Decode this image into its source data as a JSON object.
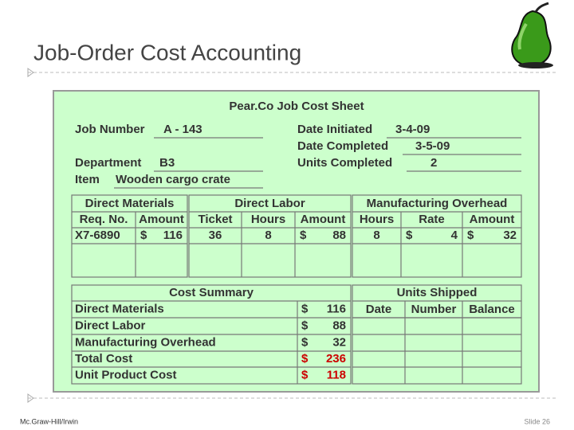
{
  "header": {
    "title": "Job-Order Cost Accounting"
  },
  "sheet": {
    "title": "Pear.Co Job Cost Sheet",
    "fields": [
      {
        "label": "Job Number",
        "value": "A - 143"
      },
      {
        "label": "Department",
        "value": "B3"
      },
      {
        "label": "Item",
        "value": "Wooden cargo crate"
      },
      {
        "label": "Date Initiated",
        "value": "3-4-09"
      },
      {
        "label": "Date Completed",
        "value": "3-5-09"
      },
      {
        "label": "Units Completed",
        "value": "2"
      }
    ],
    "currency": "$",
    "costs": {
      "groups": [
        "Direct Materials",
        "Direct Labor",
        "Manufacturing Overhead"
      ],
      "columns": [
        "Req. No.",
        "Amount",
        "Ticket",
        "Hours",
        "Amount",
        "Hours",
        "Rate",
        "Amount"
      ],
      "row": [
        "X7-6890",
        116,
        36,
        8,
        88,
        8,
        4,
        32
      ]
    },
    "summary": {
      "title": "Cost Summary",
      "rows": [
        {
          "label": "Direct Materials",
          "amount": 116
        },
        {
          "label": "Direct Labor",
          "amount": 88
        },
        {
          "label": "Manufacturing Overhead",
          "amount": 32
        },
        {
          "label": "Total Cost",
          "amount": 236
        },
        {
          "label": "Unit Product Cost",
          "amount": 118
        }
      ]
    },
    "shipped": {
      "title": "Units Shipped",
      "columns": [
        "Date",
        "Number",
        "Balance"
      ]
    }
  },
  "footer": {
    "publisher": "Mc.Graw-Hill/Irwin",
    "slide": "Slide 26"
  }
}
